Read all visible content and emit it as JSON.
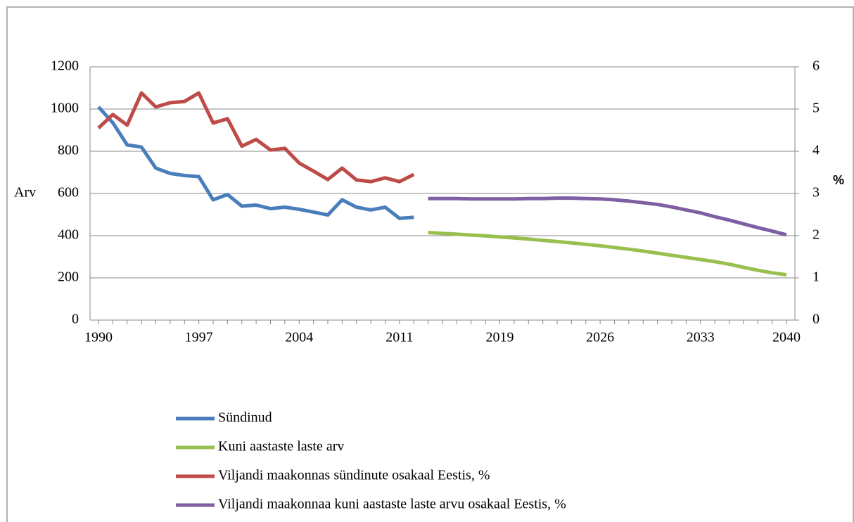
{
  "chart_data": {
    "type": "line",
    "y_label": "Arv",
    "y2_label": "%",
    "categories": [
      "1990",
      null,
      null,
      null,
      null,
      null,
      null,
      "1997",
      null,
      null,
      null,
      null,
      null,
      null,
      "2004",
      null,
      null,
      null,
      null,
      null,
      null,
      "2011",
      null,
      null,
      null,
      null,
      null,
      null,
      "2019",
      null,
      null,
      null,
      null,
      null,
      null,
      "2026",
      null,
      null,
      null,
      null,
      null,
      null,
      "2033",
      null,
      null,
      null,
      null,
      null,
      "2040"
    ],
    "ylim": [
      0,
      1200
    ],
    "yticks": [
      0,
      200,
      400,
      600,
      800,
      1000,
      1200
    ],
    "y2lim": [
      0,
      6
    ],
    "y2ticks": [
      0,
      1,
      2,
      3,
      4,
      5,
      6
    ],
    "grid": true,
    "legend": "bottom",
    "series": [
      {
        "name": "Sündinud",
        "color": "#4a7ebb",
        "axis": "y",
        "values": [
          1010,
          935,
          830,
          820,
          720,
          695,
          685,
          680,
          570,
          595,
          540,
          545,
          528,
          535,
          525,
          512,
          498,
          570,
          535,
          522,
          535,
          482,
          487,
          null,
          null,
          null,
          null,
          null,
          null,
          null,
          null,
          null,
          null,
          null,
          null,
          null,
          null,
          null,
          null,
          null,
          null,
          null,
          null,
          null,
          null,
          null,
          null,
          null,
          null
        ]
      },
      {
        "name": "Kuni aastaste laste arv",
        "color": "#98c04f",
        "axis": "y",
        "values": [
          null,
          null,
          null,
          null,
          null,
          null,
          null,
          null,
          null,
          null,
          null,
          null,
          null,
          null,
          null,
          null,
          null,
          null,
          null,
          null,
          null,
          null,
          null,
          415,
          411,
          407,
          403,
          399,
          394,
          389,
          384,
          378,
          372,
          366,
          359,
          352,
          344,
          336,
          327,
          317,
          307,
          297,
          287,
          277,
          265,
          250,
          236,
          224,
          215
        ]
      },
      {
        "name": "Viljandi maakonnas sündinute osakaal Eestis, %",
        "color": "#be4b48",
        "axis": "y2",
        "values": [
          4.55,
          4.87,
          4.62,
          5.38,
          5.05,
          5.15,
          5.18,
          5.38,
          4.67,
          4.77,
          4.12,
          4.28,
          4.03,
          4.07,
          3.72,
          3.53,
          3.33,
          3.6,
          3.32,
          3.28,
          3.37,
          3.28,
          3.45,
          null,
          null,
          null,
          null,
          null,
          null,
          null,
          null,
          null,
          null,
          null,
          null,
          null,
          null,
          null,
          null,
          null,
          null,
          null,
          null,
          null,
          null,
          null,
          null,
          null,
          null
        ]
      },
      {
        "name": "Viljandi maakonnaa kuni aastaste laste arvu osakaal Eestis, %",
        "color": "#7e5fa3",
        "axis": "y2",
        "values": [
          null,
          null,
          null,
          null,
          null,
          null,
          null,
          null,
          null,
          null,
          null,
          null,
          null,
          null,
          null,
          null,
          null,
          null,
          null,
          null,
          null,
          null,
          null,
          2.88,
          2.88,
          2.88,
          2.87,
          2.87,
          2.87,
          2.87,
          2.88,
          2.88,
          2.89,
          2.89,
          2.88,
          2.87,
          2.85,
          2.82,
          2.78,
          2.74,
          2.68,
          2.61,
          2.54,
          2.45,
          2.37,
          2.28,
          2.19,
          2.11,
          2.02
        ]
      }
    ]
  }
}
